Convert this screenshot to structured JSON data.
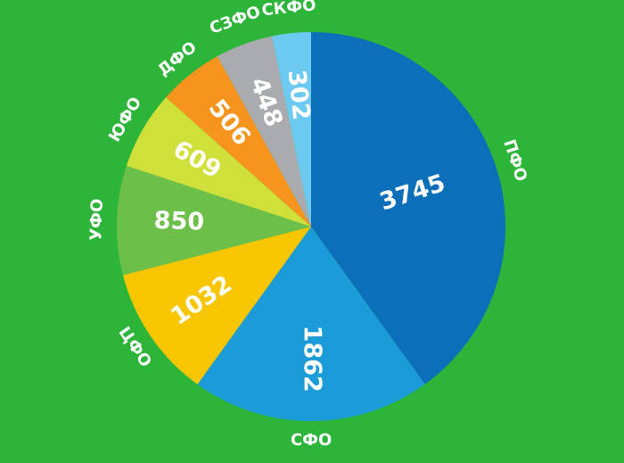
{
  "chart_data": {
    "type": "pie",
    "categories": [
      "ПФО",
      "СФО",
      "ЦФО",
      "УФО",
      "ЮФО",
      "ДФО",
      "СЗФО",
      "СКФО"
    ],
    "values": [
      3745,
      1862,
      1032,
      850,
      609,
      506,
      448,
      302
    ],
    "colors": [
      "#0b6fb9",
      "#1b9bd7",
      "#f7c600",
      "#6cc04a",
      "#cfe03b",
      "#f7941d",
      "#a9abae",
      "#6ccaf1"
    ]
  }
}
